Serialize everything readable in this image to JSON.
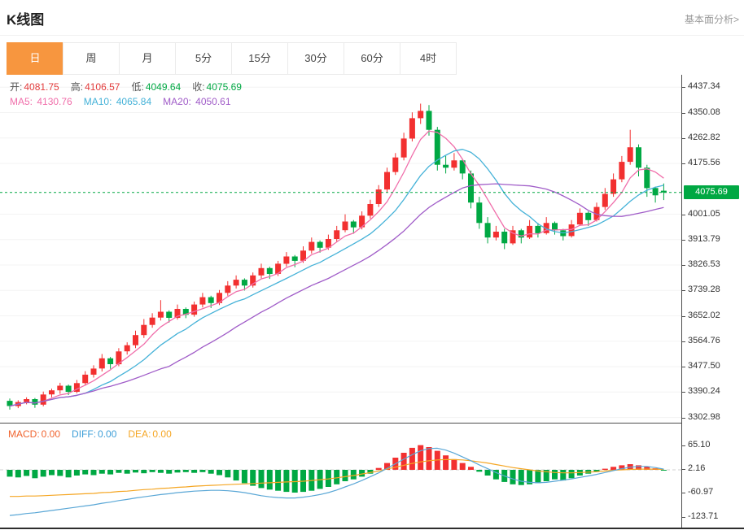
{
  "header": {
    "title": "K线图",
    "link_label": "基本面分析>"
  },
  "tabs": [
    {
      "name": "day",
      "label": "日",
      "active": true
    },
    {
      "name": "week",
      "label": "周",
      "active": false
    },
    {
      "name": "month",
      "label": "月",
      "active": false
    },
    {
      "name": "5min",
      "label": "5分",
      "active": false
    },
    {
      "name": "15min",
      "label": "15分",
      "active": false
    },
    {
      "name": "30min",
      "label": "30分",
      "active": false
    },
    {
      "name": "60min",
      "label": "60分",
      "active": false
    },
    {
      "name": "4hour",
      "label": "4时",
      "active": false
    }
  ],
  "info_bars": {
    "ohlc": [
      {
        "name": "open",
        "label": "开:",
        "value": "4081.75",
        "color": "#e23b3b"
      },
      {
        "name": "high",
        "label": "高:",
        "value": "4106.57",
        "color": "#e23b3b"
      },
      {
        "name": "low",
        "label": "低:",
        "value": "4049.64",
        "color": "#00a843"
      },
      {
        "name": "close",
        "label": "收:",
        "value": "4075.69",
        "color": "#00a843"
      }
    ],
    "ma": [
      {
        "name": "ma5",
        "label": "MA5: ",
        "value": "4130.76",
        "color": "#f06eaa"
      },
      {
        "name": "ma10",
        "label": "MA10: ",
        "value": "4065.84",
        "color": "#45b2d8"
      },
      {
        "name": "ma20",
        "label": "MA20: ",
        "value": "4050.61",
        "color": "#a05cc8"
      }
    ],
    "macd": [
      {
        "name": "macd",
        "label": "MACD:",
        "value": "0.00",
        "color": "#f0642f"
      },
      {
        "name": "diff",
        "label": "DIFF:",
        "value": "0.00",
        "color": "#3f9fd8"
      },
      {
        "name": "dea",
        "label": "DEA:",
        "value": "0.00",
        "color": "#f5a623"
      }
    ]
  },
  "colors": {
    "up": "#f23030",
    "down": "#00a843",
    "ma5": "#f06eaa",
    "ma10": "#45b2d8",
    "ma20": "#a05cc8",
    "diff": "#5aa7d6",
    "dea": "#f5a623",
    "current": "#00a843",
    "grid": "#f3f3f3",
    "accent_tab": "#f7963f"
  },
  "chart_data": [
    {
      "type": "candlestick",
      "title": "K线图",
      "interval": "日",
      "ylim": [
        3285,
        4480
      ],
      "y_ticks": [
        4437.34,
        4350.08,
        4262.82,
        4175.56,
        4001.05,
        3913.79,
        3826.53,
        3739.28,
        3652.02,
        3564.76,
        3477.5,
        3390.24,
        3302.98
      ],
      "current_price": 4075.69,
      "ohlc": {
        "open": 4081.75,
        "high": 4106.57,
        "low": 4049.64,
        "close": 4075.69
      },
      "ma_values": {
        "MA5": 4130.76,
        "MA10": 4065.84,
        "MA20": 4050.61
      },
      "ma_periods": [
        5,
        10,
        20
      ],
      "candles": [
        [
          3360,
          3368,
          3330,
          3342
        ],
        [
          3342,
          3362,
          3335,
          3356
        ],
        [
          3356,
          3372,
          3348,
          3366
        ],
        [
          3366,
          3370,
          3336,
          3347
        ],
        [
          3347,
          3392,
          3341,
          3382
        ],
        [
          3382,
          3402,
          3372,
          3396
        ],
        [
          3396,
          3422,
          3384,
          3412
        ],
        [
          3412,
          3416,
          3380,
          3391
        ],
        [
          3391,
          3432,
          3386,
          3421
        ],
        [
          3421,
          3462,
          3412,
          3450
        ],
        [
          3450,
          3482,
          3440,
          3471
        ],
        [
          3471,
          3521,
          3461,
          3506
        ],
        [
          3506,
          3511,
          3470,
          3486
        ],
        [
          3486,
          3541,
          3479,
          3530
        ],
        [
          3530,
          3561,
          3519,
          3551
        ],
        [
          3551,
          3601,
          3541,
          3586
        ],
        [
          3586,
          3641,
          3576,
          3621
        ],
        [
          3621,
          3661,
          3611,
          3646
        ],
        [
          3646,
          3706,
          3636,
          3666
        ],
        [
          3666,
          3671,
          3629,
          3645
        ],
        [
          3645,
          3691,
          3639,
          3676
        ],
        [
          3676,
          3681,
          3644,
          3656
        ],
        [
          3656,
          3701,
          3649,
          3691
        ],
        [
          3691,
          3731,
          3681,
          3716
        ],
        [
          3716,
          3721,
          3679,
          3696
        ],
        [
          3696,
          3741,
          3689,
          3731
        ],
        [
          3731,
          3771,
          3721,
          3756
        ],
        [
          3756,
          3791,
          3746,
          3776
        ],
        [
          3776,
          3781,
          3739,
          3756
        ],
        [
          3756,
          3801,
          3749,
          3791
        ],
        [
          3791,
          3831,
          3781,
          3816
        ],
        [
          3816,
          3821,
          3779,
          3796
        ],
        [
          3796,
          3841,
          3789,
          3831
        ],
        [
          3831,
          3871,
          3821,
          3856
        ],
        [
          3856,
          3861,
          3819,
          3841
        ],
        [
          3841,
          3891,
          3834,
          3876
        ],
        [
          3876,
          3921,
          3866,
          3906
        ],
        [
          3906,
          3911,
          3869,
          3886
        ],
        [
          3886,
          3931,
          3879,
          3916
        ],
        [
          3916,
          3961,
          3906,
          3946
        ],
        [
          3946,
          4001,
          3939,
          3976
        ],
        [
          3976,
          3981,
          3934,
          3956
        ],
        [
          3956,
          4011,
          3949,
          3996
        ],
        [
          3996,
          4051,
          3986,
          4036
        ],
        [
          4036,
          4101,
          4026,
          4086
        ],
        [
          4086,
          4161,
          4076,
          4146
        ],
        [
          4146,
          4211,
          4136,
          4196
        ],
        [
          4196,
          4281,
          4186,
          4261
        ],
        [
          4261,
          4351,
          4251,
          4331
        ],
        [
          4331,
          4381,
          4311,
          4356
        ],
        [
          4356,
          4376,
          4271,
          4291
        ],
        [
          4291,
          4301,
          4151,
          4171
        ],
        [
          4171,
          4201,
          4141,
          4161
        ],
        [
          4161,
          4211,
          4151,
          4186
        ],
        [
          4186,
          4191,
          4121,
          4141
        ],
        [
          4141,
          4151,
          4021,
          4041
        ],
        [
          4041,
          4061,
          3951,
          3971
        ],
        [
          3971,
          3991,
          3901,
          3921
        ],
        [
          3921,
          3961,
          3911,
          3941
        ],
        [
          3941,
          3951,
          3881,
          3901
        ],
        [
          3901,
          3961,
          3896,
          3946
        ],
        [
          3946,
          3951,
          3901,
          3921
        ],
        [
          3921,
          3981,
          3916,
          3961
        ],
        [
          3961,
          3971,
          3921,
          3936
        ],
        [
          3936,
          3991,
          3931,
          3971
        ],
        [
          3971,
          3976,
          3931,
          3946
        ],
        [
          3946,
          3951,
          3911,
          3926
        ],
        [
          3926,
          3981,
          3921,
          3966
        ],
        [
          3966,
          4021,
          3961,
          4006
        ],
        [
          4006,
          4011,
          3961,
          3981
        ],
        [
          3981,
          4041,
          3976,
          4026
        ],
        [
          4026,
          4091,
          4016,
          4071
        ],
        [
          4071,
          4141,
          4061,
          4121
        ],
        [
          4121,
          4201,
          4111,
          4181
        ],
        [
          4181,
          4291,
          4171,
          4231
        ],
        [
          4231,
          4241,
          4131,
          4161
        ],
        [
          4161,
          4171,
          4061,
          4091
        ],
        [
          4091,
          4096,
          4041,
          4066
        ],
        [
          4081.75,
          4106.57,
          4049.64,
          4075.69
        ]
      ]
    },
    {
      "type": "bar",
      "name": "MACD",
      "ylim": [
        -152,
        122
      ],
      "y_ticks": [
        65.1,
        2.16,
        -60.97,
        -123.71
      ],
      "macd_value": 0.0,
      "diff_value": 0.0,
      "dea_value": 0.0,
      "hist": [
        -18,
        -20,
        -16,
        -22,
        -18,
        -14,
        -16,
        -20,
        -15,
        -12,
        -14,
        -10,
        -12,
        -8,
        -10,
        -7,
        -9,
        -6,
        -8,
        -10,
        -7,
        -6,
        -8,
        -6,
        -10,
        -14,
        -20,
        -28,
        -35,
        -42,
        -48,
        -52,
        -55,
        -58,
        -60,
        -58,
        -55,
        -50,
        -45,
        -38,
        -30,
        -25,
        -18,
        -10,
        5,
        18,
        32,
        45,
        58,
        65,
        60,
        50,
        38,
        28,
        18,
        8,
        -5,
        -15,
        -25,
        -32,
        -38,
        -40,
        -38,
        -35,
        -30,
        -25,
        -28,
        -22,
        -15,
        -10,
        -5,
        3,
        8,
        12,
        15,
        12,
        8,
        4,
        -2
      ],
      "diff_line": [
        -120,
        -118,
        -115,
        -113,
        -110,
        -107,
        -104,
        -101,
        -98,
        -95,
        -92,
        -88,
        -85,
        -81,
        -78,
        -74,
        -71,
        -68,
        -65,
        -63,
        -60,
        -58,
        -56,
        -55,
        -54,
        -54,
        -55,
        -57,
        -60,
        -64,
        -68,
        -71,
        -73,
        -74,
        -74,
        -72,
        -69,
        -65,
        -60,
        -53,
        -45,
        -37,
        -28,
        -18,
        -8,
        4,
        16,
        28,
        40,
        50,
        56,
        57,
        52,
        44,
        34,
        24,
        13,
        3,
        -7,
        -16,
        -24,
        -30,
        -33,
        -34,
        -33,
        -30,
        -27,
        -24,
        -20,
        -16,
        -12,
        -7,
        -2,
        3,
        7,
        9,
        9,
        6,
        2
      ],
      "dea_line": [
        -70,
        -70,
        -69,
        -69,
        -68,
        -67,
        -66,
        -65,
        -64,
        -63,
        -62,
        -60,
        -59,
        -57,
        -56,
        -54,
        -52,
        -51,
        -49,
        -48,
        -46,
        -45,
        -43,
        -42,
        -41,
        -40,
        -39,
        -38,
        -37,
        -36,
        -35,
        -34,
        -33,
        -32,
        -31,
        -30,
        -28,
        -26,
        -24,
        -21,
        -18,
        -15,
        -11,
        -7,
        -3,
        2,
        7,
        12,
        17,
        21,
        24,
        26,
        27,
        27,
        26,
        24,
        21,
        18,
        14,
        10,
        6,
        3,
        0,
        -3,
        -5,
        -7,
        -8,
        -8,
        -7,
        -6,
        -5,
        -3,
        -1,
        0,
        1,
        2,
        2,
        2,
        1
      ]
    }
  ]
}
